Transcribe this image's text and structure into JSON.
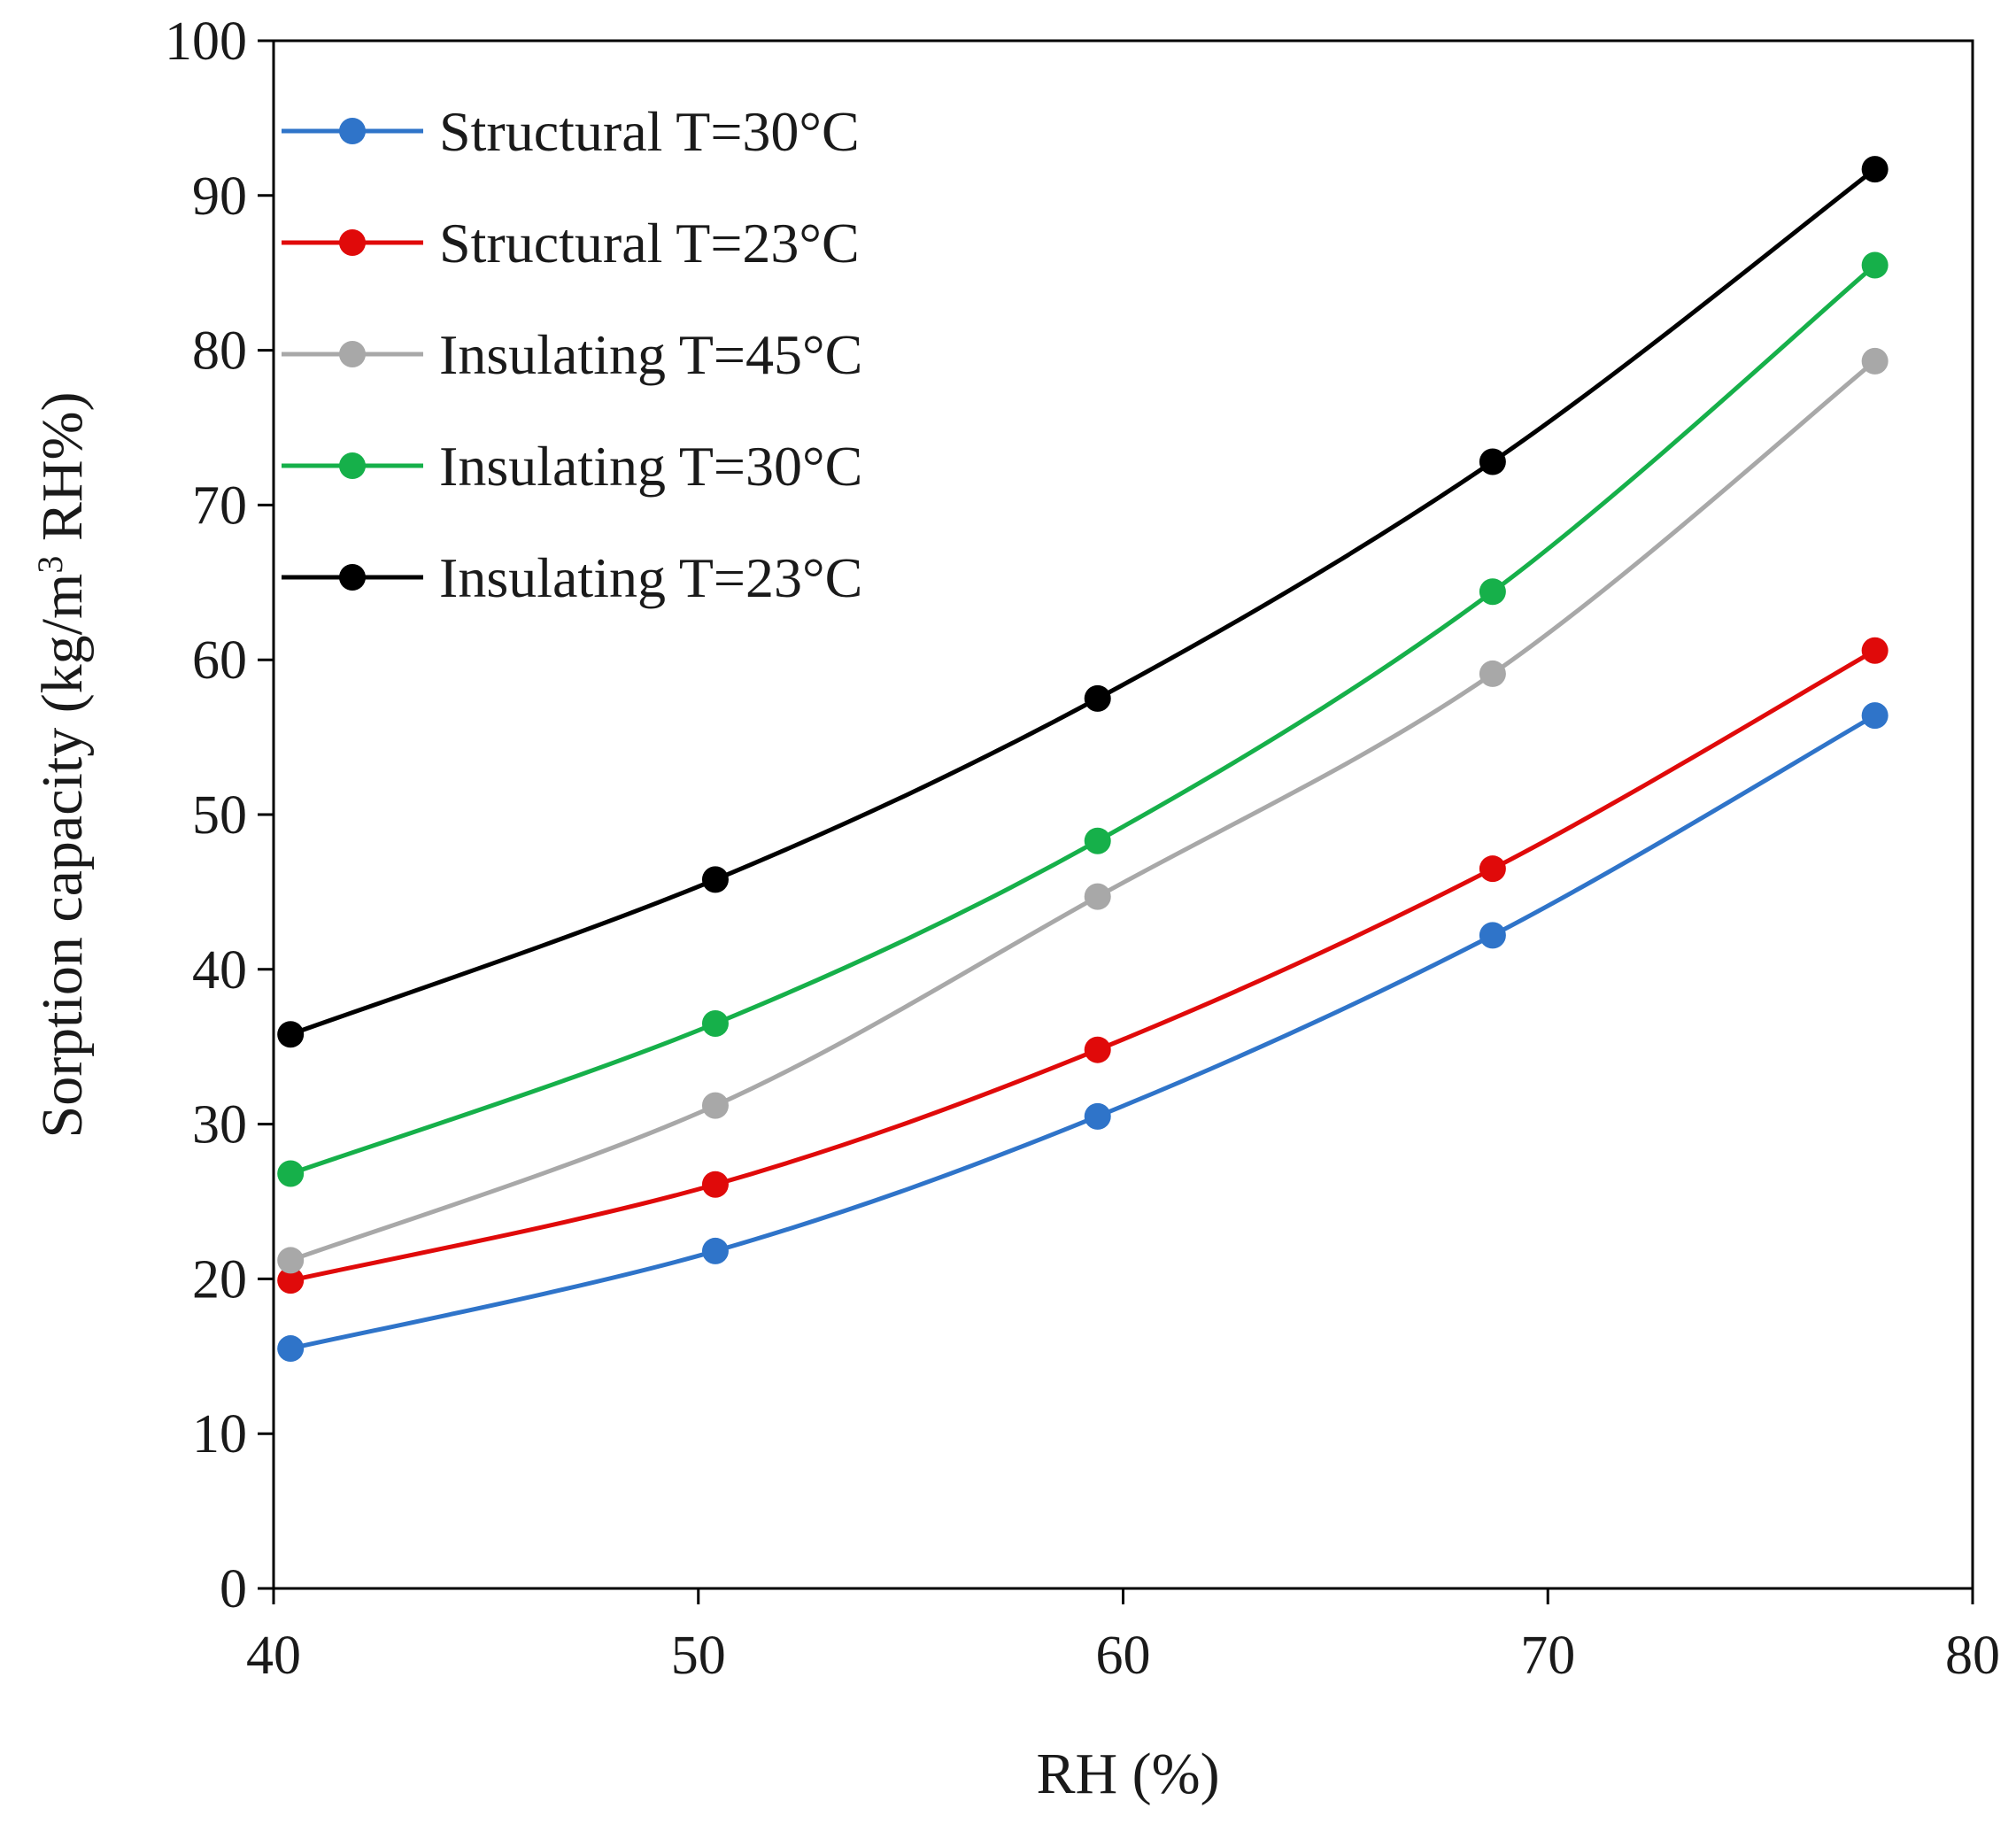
{
  "chart_data": {
    "type": "line",
    "title": "",
    "xlabel": "RH (%)",
    "ylabel_main": "Sorption capacity (kg/m",
    "ylabel_sup": "3",
    "ylabel_tail": " RH%)",
    "xlim": [
      40,
      80
    ],
    "ylim": [
      0,
      100
    ],
    "x_ticks": [
      40,
      50,
      60,
      70,
      80
    ],
    "y_ticks": [
      0,
      10,
      20,
      30,
      40,
      50,
      60,
      70,
      80,
      90,
      100
    ],
    "grid": false,
    "legend_position": "top-left",
    "x": [
      40.4,
      50.4,
      59.4,
      68.7,
      77.7
    ],
    "series": [
      {
        "name": "Structural T=30°C",
        "color": "#2f74c9",
        "values": [
          15.5,
          21.8,
          30.5,
          42.2,
          56.4
        ]
      },
      {
        "name": "Structural T=23°C",
        "color": "#e00a0a",
        "values": [
          19.9,
          26.1,
          34.8,
          46.5,
          60.6
        ]
      },
      {
        "name": "Insulating T=45°C",
        "color": "#a8a8a8",
        "values": [
          21.2,
          31.2,
          44.7,
          59.1,
          79.3
        ]
      },
      {
        "name": "Insulating T=30°C",
        "color": "#16b04a",
        "values": [
          26.8,
          36.5,
          48.3,
          64.4,
          85.5
        ]
      },
      {
        "name": "Insulating T=23°C",
        "color": "#000000",
        "values": [
          35.8,
          45.8,
          57.5,
          72.8,
          91.7
        ]
      }
    ]
  }
}
